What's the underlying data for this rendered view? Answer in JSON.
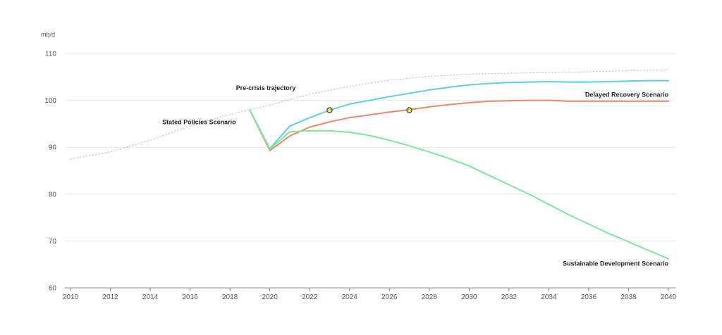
{
  "chart_data": {
    "type": "line",
    "yunit": "mb/d",
    "ylim": [
      60,
      110
    ],
    "xlim": [
      2010,
      2040
    ],
    "yticks": [
      60,
      70,
      80,
      90,
      100,
      110
    ],
    "xticks": [
      2010,
      2012,
      2014,
      2016,
      2018,
      2020,
      2022,
      2024,
      2026,
      2028,
      2030,
      2032,
      2034,
      2036,
      2038,
      2040
    ],
    "grid": "horizontal",
    "series": [
      {
        "name": "Pre-crisis trajectory",
        "color": "#c8c8c8",
        "style": "dotted",
        "x": [
          2010,
          2012,
          2014,
          2016,
          2018,
          2020,
          2022,
          2024,
          2026,
          2028,
          2030,
          2032,
          2034,
          2036,
          2038,
          2040
        ],
        "y": [
          87.5,
          89,
          91.5,
          94.5,
          97,
          99,
          101.3,
          103,
          104.3,
          105.1,
          105.6,
          105.8,
          105.9,
          106.1,
          106.3,
          106.5
        ]
      },
      {
        "name": "Stated Policies Scenario",
        "color": "#5dd0e0",
        "style": "solid",
        "x": [
          2019,
          2020,
          2021,
          2022,
          2023,
          2024,
          2025,
          2026,
          2027,
          2028,
          2029,
          2030,
          2031,
          2032,
          2033,
          2034,
          2035,
          2036,
          2037,
          2038,
          2039,
          2040
        ],
        "y": [
          97.9,
          89.7,
          94.5,
          96.3,
          97.9,
          99.2,
          100,
          100.8,
          101.5,
          102.2,
          102.8,
          103.3,
          103.6,
          103.8,
          103.9,
          104,
          103.9,
          103.9,
          104,
          104.1,
          104.2,
          104.2
        ]
      },
      {
        "name": "Delayed Recovery Scenario",
        "color": "#e8896a",
        "style": "solid",
        "x": [
          2019,
          2020,
          2021,
          2022,
          2023,
          2024,
          2025,
          2026,
          2027,
          2028,
          2029,
          2030,
          2031,
          2032,
          2033,
          2034,
          2035,
          2036,
          2037,
          2038,
          2039,
          2040
        ],
        "y": [
          97.9,
          89.3,
          92.4,
          94.3,
          95.4,
          96.3,
          96.9,
          97.5,
          98,
          98.6,
          99.1,
          99.5,
          99.8,
          99.9,
          100,
          100,
          99.8,
          99.8,
          99.8,
          99.8,
          99.8,
          99.8
        ]
      },
      {
        "name": "Sustainable Development Scenario",
        "color": "#7de89a",
        "style": "solid",
        "x": [
          2019,
          2020,
          2021,
          2022,
          2023,
          2024,
          2025,
          2026,
          2027,
          2028,
          2029,
          2030,
          2031,
          2032,
          2033,
          2034,
          2035,
          2036,
          2037,
          2038,
          2039,
          2040
        ],
        "y": [
          97.9,
          89.6,
          93.3,
          93.5,
          93.5,
          93.2,
          92.5,
          91.5,
          90.3,
          89,
          87.6,
          86,
          84,
          82,
          80,
          77.8,
          75.6,
          73.6,
          71.6,
          69.8,
          68,
          66.2
        ]
      }
    ],
    "markers": [
      {
        "x": 2023,
        "y": 97.9,
        "color": "#e6e36a",
        "stroke": "#333333"
      },
      {
        "x": 2027,
        "y": 97.9,
        "color": "#e6e36a",
        "stroke": "#333333"
      }
    ],
    "annotations": [
      {
        "text": "Pre-crisis trajectory",
        "x": 2019.8,
        "y": 102.2,
        "anchor": "middle"
      },
      {
        "text": "Stated Policies Scenario",
        "x": 2018.3,
        "y": 94.9,
        "anchor": "end"
      },
      {
        "text": "Delayed Recovery Scenario",
        "x": 2040,
        "y": 100.8,
        "anchor": "end"
      },
      {
        "text": "Sustainable Development Scenario",
        "x": 2040,
        "y": 64.7,
        "anchor": "end"
      }
    ]
  }
}
